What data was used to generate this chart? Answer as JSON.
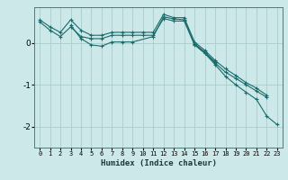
{
  "xlabel": "Humidex (Indice chaleur)",
  "ylabel": "",
  "background_color": "#cde8e8",
  "grid_color": "#aacccc",
  "line_color": "#1a6b6b",
  "xlim": [
    -0.5,
    23.5
  ],
  "ylim": [
    -2.5,
    0.85
  ],
  "yticks": [
    -2,
    -1,
    0
  ],
  "xticks": [
    0,
    1,
    2,
    3,
    4,
    5,
    6,
    7,
    8,
    9,
    10,
    11,
    12,
    13,
    14,
    15,
    16,
    17,
    18,
    19,
    20,
    21,
    22,
    23
  ],
  "series": [
    {
      "x": [
        0,
        1,
        2,
        3,
        4,
        5,
        6,
        7,
        8,
        9,
        10,
        11,
        12,
        13,
        14,
        15,
        16,
        17,
        18,
        19,
        20,
        21,
        22
      ],
      "y": [
        0.55,
        0.38,
        0.25,
        0.55,
        0.3,
        0.18,
        0.18,
        0.25,
        0.25,
        0.25,
        0.25,
        0.25,
        0.68,
        0.6,
        0.6,
        0.02,
        -0.18,
        -0.42,
        -0.62,
        -0.78,
        -0.95,
        -1.08,
        -1.25
      ]
    },
    {
      "x": [
        0,
        1,
        2,
        3,
        4,
        5,
        6,
        7,
        8,
        9,
        10,
        11,
        12,
        13,
        14,
        15,
        16,
        17,
        18,
        19,
        20,
        21,
        22
      ],
      "y": [
        0.5,
        0.3,
        0.15,
        0.38,
        0.15,
        0.1,
        0.1,
        0.18,
        0.18,
        0.18,
        0.18,
        0.18,
        0.58,
        0.52,
        0.52,
        -0.05,
        -0.25,
        -0.48,
        -0.7,
        -0.85,
        -1.0,
        -1.15,
        -1.3
      ]
    },
    {
      "x": [
        3,
        4,
        5,
        6,
        7,
        8,
        9,
        11,
        12,
        13,
        14,
        15,
        16,
        17
      ],
      "y": [
        0.42,
        0.1,
        -0.05,
        -0.08,
        0.02,
        0.02,
        0.02,
        0.15,
        0.62,
        0.57,
        0.55,
        -0.02,
        -0.22,
        -0.46
      ]
    },
    {
      "x": [
        15,
        16,
        17,
        18,
        19,
        20,
        21,
        22,
        23
      ],
      "y": [
        -0.02,
        -0.25,
        -0.52,
        -0.8,
        -1.0,
        -1.18,
        -1.35,
        -1.75,
        -1.95
      ]
    }
  ]
}
